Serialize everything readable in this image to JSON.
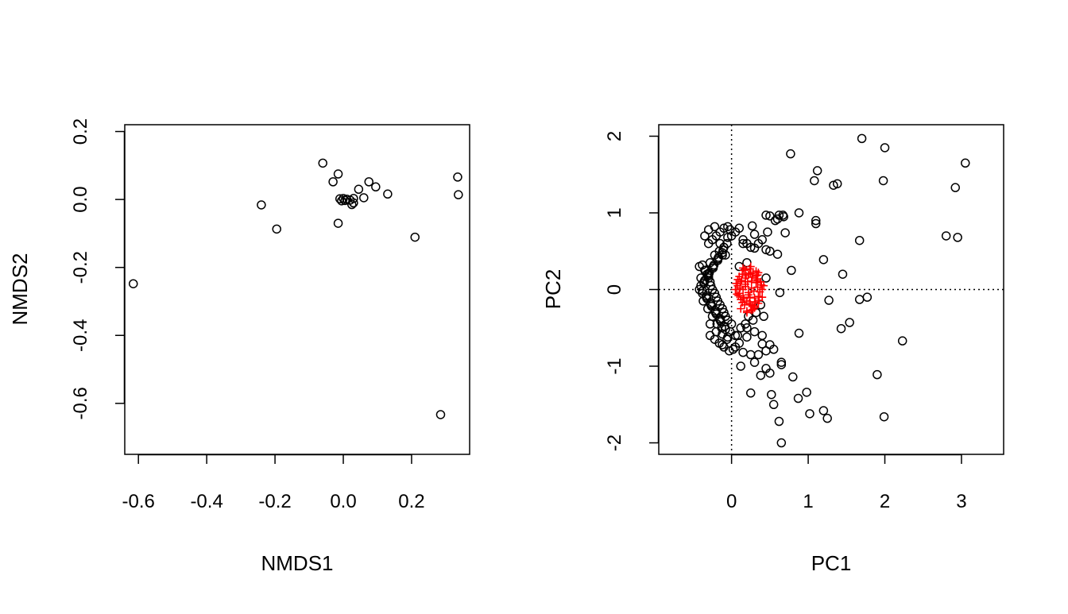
{
  "chart_data": [
    {
      "type": "scatter",
      "title": "",
      "xlabel": "NMDS1",
      "ylabel": "NMDS2",
      "xlim": [
        -0.64,
        0.37
      ],
      "ylim": [
        -0.75,
        0.22
      ],
      "xticks": [
        -0.6,
        -0.4,
        -0.2,
        0.0,
        0.2
      ],
      "xtick_labels": [
        "-0.6",
        "-0.4",
        "-0.2",
        "0.0",
        "0.2"
      ],
      "yticks": [
        0.2,
        0.0,
        -0.2,
        -0.4,
        -0.6
      ],
      "ytick_labels": [
        "0.2",
        "0.0",
        "-0.2",
        "-0.4",
        "-0.6"
      ],
      "grid": false,
      "series": [
        {
          "marker": "open-circle",
          "color": "#000000",
          "x": [
            -0.615,
            -0.24,
            -0.195,
            -0.06,
            -0.03,
            -0.015,
            -0.015,
            -0.01,
            -0.005,
            0.0,
            0.005,
            0.01,
            0.02,
            0.025,
            0.03,
            0.03,
            0.045,
            0.06,
            0.075,
            0.095,
            0.13,
            0.21,
            0.285,
            0.335,
            0.337
          ],
          "y": [
            -0.248,
            -0.016,
            -0.087,
            0.107,
            0.052,
            0.075,
            -0.07,
            0.002,
            -0.004,
            0.003,
            -0.003,
            0.001,
            -0.002,
            -0.015,
            -0.01,
            0.003,
            0.03,
            0.005,
            0.052,
            0.037,
            0.016,
            -0.111,
            -0.633,
            0.066,
            0.014
          ]
        }
      ]
    },
    {
      "type": "scatter",
      "title": "",
      "xlabel": "PC1",
      "ylabel": "PC2",
      "xlim": [
        -0.95,
        3.55
      ],
      "ylim": [
        -2.15,
        2.15
      ],
      "xticks": [
        0,
        1,
        2,
        3
      ],
      "xtick_labels": [
        "0",
        "1",
        "2",
        "3"
      ],
      "yticks": [
        2,
        1,
        0,
        -1,
        -2
      ],
      "ytick_labels": [
        "2",
        "1",
        "0",
        "-1",
        "-2"
      ],
      "reference_lines": {
        "x": 0,
        "y": 0,
        "style": "dotted"
      },
      "grid": false,
      "series": [
        {
          "marker": "open-circle",
          "color": "#000000",
          "x": [
            1.7,
            2.0,
            3.05,
            0.77,
            1.12,
            1.08,
            1.33,
            1.38,
            1.98,
            2.92,
            2.8,
            2.95,
            1.67,
            1.2,
            1.45,
            0.78,
            1.27,
            1.67,
            1.77,
            1.43,
            1.54,
            0.88,
            2.23,
            1.9,
            1.99,
            1.2,
            1.25,
            0.98,
            0.87,
            1.02,
            0.8,
            0.45,
            0.5,
            0.38,
            0.52,
            0.55,
            0.62,
            0.65,
            0.65,
            0.3,
            0.35,
            0.4,
            0.2,
            0.25,
            0.15,
            0.12,
            0.65,
            0.55,
            0.5,
            0.45,
            0.4,
            0.3,
            0.25,
            0.2,
            0.1,
            0.05,
            0.0,
            0.68,
            0.62,
            0.57,
            0.5,
            0.45,
            0.47,
            0.6,
            0.67,
            0.88,
            1.1,
            1.1,
            0.63,
            0.7,
            0.6,
            0.5,
            0.45,
            0.3,
            0.2,
            0.1,
            0.15,
            0.27,
            0.4,
            0.45
          ],
          "y": [
            1.97,
            1.85,
            1.65,
            1.77,
            1.55,
            1.42,
            1.36,
            1.38,
            1.42,
            1.33,
            0.7,
            0.68,
            0.64,
            0.39,
            0.2,
            0.25,
            -0.14,
            -0.13,
            -0.1,
            -0.51,
            -0.43,
            -0.57,
            -0.67,
            -1.11,
            -1.66,
            -1.58,
            -1.68,
            -1.34,
            -1.42,
            -1.62,
            -1.14,
            -1.03,
            -1.09,
            -1.12,
            -1.37,
            -1.5,
            -1.72,
            -2.0,
            -0.95,
            -0.95,
            -0.85,
            -0.71,
            -0.62,
            -1.35,
            -0.82,
            -1.0,
            -0.98,
            -0.78,
            -0.72,
            -0.8,
            -0.6,
            -0.55,
            -0.85,
            -0.5,
            -0.7,
            -0.6,
            -0.45,
            0.95,
            0.97,
            0.9,
            0.96,
            0.97,
            0.75,
            0.92,
            0.97,
            1.0,
            0.9,
            0.86,
            -0.04,
            0.74,
            0.46,
            0.5,
            0.52,
            0.54,
            0.35,
            0.3,
            0.6,
            0.83,
            0.65,
            0.15
          ]
        },
        {
          "marker": "open-circle",
          "color": "#000000",
          "description_none": "",
          "x": [
            -0.42,
            -0.38,
            -0.35,
            -0.32,
            -0.3,
            -0.28,
            -0.27,
            -0.25,
            -0.22,
            -0.2,
            -0.18,
            -0.15,
            -0.12,
            -0.1,
            -0.08,
            -0.05,
            -0.42,
            -0.4,
            -0.38,
            -0.36,
            -0.33,
            -0.3,
            -0.27,
            -0.24,
            -0.21,
            -0.18,
            -0.15,
            -0.12,
            -0.4,
            -0.37,
            -0.34,
            -0.31,
            -0.28,
            -0.25,
            -0.22,
            -0.19,
            -0.16,
            -0.13,
            -0.1,
            -0.38,
            -0.35,
            -0.32,
            -0.29,
            -0.26,
            -0.23,
            -0.2,
            -0.17,
            -0.14,
            -0.11,
            -0.08,
            -0.36,
            -0.33,
            -0.3,
            -0.27,
            -0.24,
            -0.21,
            -0.18,
            -0.15,
            -0.12,
            -0.09,
            -0.06,
            -0.3,
            -0.25,
            -0.2,
            -0.15,
            -0.1,
            -0.05,
            -0.02,
            -0.28,
            -0.22,
            -0.16,
            -0.1,
            -0.05,
            -0.02,
            -0.35,
            -0.3,
            -0.22,
            -0.15,
            -0.1,
            -0.05,
            0.0,
            -0.28,
            -0.2,
            -0.12,
            -0.06,
            0.02,
            -0.08,
            -0.12,
            -0.03,
            0.05,
            0.08,
            0.12,
            0.18,
            0.22,
            0.28,
            0.32,
            0.38,
            0.42,
            0.1,
            0.05,
            0.15,
            0.2,
            0.25,
            0.3,
            0.35
          ],
          "y": [
            0.3,
            0.32,
            0.25,
            0.2,
            0.15,
            0.1,
            0.05,
            0.0,
            -0.05,
            -0.1,
            -0.15,
            -0.2,
            -0.25,
            -0.3,
            -0.35,
            -0.4,
            0.0,
            0.05,
            -0.05,
            0.1,
            -0.1,
            0.2,
            -0.2,
            0.3,
            -0.3,
            0.4,
            -0.4,
            0.45,
            0.15,
            -0.15,
            0.25,
            -0.25,
            0.35,
            -0.35,
            0.45,
            -0.45,
            0.5,
            -0.5,
            0.55,
            -0.02,
            0.12,
            -0.12,
            0.22,
            -0.22,
            0.32,
            -0.32,
            0.42,
            -0.42,
            0.52,
            -0.52,
            0.08,
            -0.08,
            0.18,
            -0.18,
            0.28,
            -0.28,
            0.38,
            -0.38,
            0.48,
            -0.48,
            0.6,
            0.6,
            0.65,
            0.7,
            0.75,
            0.8,
            0.82,
            0.78,
            -0.6,
            -0.65,
            -0.7,
            -0.75,
            -0.62,
            -0.55,
            0.7,
            0.78,
            0.82,
            0.6,
            0.55,
            0.68,
            0.7,
            -0.45,
            -0.55,
            -0.58,
            -0.65,
            -0.78,
            0.45,
            -0.72,
            -0.8,
            -0.75,
            -0.6,
            -0.5,
            -0.45,
            -0.35,
            -0.4,
            -0.3,
            -0.2,
            -0.35,
            0.8,
            0.75,
            0.65,
            0.6,
            0.55,
            0.72,
            0.6
          ]
        },
        {
          "marker": "plus",
          "color": "#ff0000",
          "x": [
            0.05,
            0.08,
            0.1,
            0.12,
            0.15,
            0.18,
            0.2,
            0.22,
            0.25,
            0.28,
            0.3,
            0.32,
            0.35,
            0.38,
            0.4,
            0.42,
            0.06,
            0.09,
            0.13,
            0.16,
            0.19,
            0.23,
            0.26,
            0.29,
            0.33,
            0.36,
            0.39,
            0.07,
            0.11,
            0.14,
            0.17,
            0.21,
            0.24,
            0.27,
            0.31,
            0.34,
            0.37,
            0.08,
            0.12,
            0.15,
            0.18,
            0.22,
            0.25,
            0.28,
            0.32,
            0.35,
            0.1,
            0.14,
            0.18,
            0.22,
            0.26,
            0.3,
            0.34,
            0.12,
            0.16,
            0.2,
            0.24,
            0.28,
            0.32,
            0.15,
            0.2,
            0.25,
            0.3,
            0.35,
            0.4,
            0.18,
            0.26,
            0.34
          ],
          "y": [
            0.0,
            0.05,
            -0.05,
            0.1,
            -0.1,
            0.15,
            -0.15,
            0.2,
            -0.2,
            0.22,
            -0.22,
            0.18,
            -0.18,
            0.1,
            -0.1,
            0.05,
            0.08,
            -0.08,
            0.12,
            -0.12,
            0.18,
            -0.18,
            0.02,
            -0.02,
            0.14,
            -0.14,
            0.06,
            -0.06,
            0.02,
            0.2,
            -0.2,
            0.1,
            -0.1,
            0.16,
            -0.16,
            0.03,
            -0.03,
            0.13,
            -0.13,
            0.0,
            0.07,
            -0.07,
            0.21,
            -0.21,
            0.09,
            -0.09,
            0.17,
            -0.17,
            0.04,
            -0.04,
            0.11,
            -0.11,
            0.19,
            -0.25,
            0.25,
            -0.28,
            0.27,
            -0.26,
            0.24,
            0.28,
            -0.3,
            0.3,
            -0.24,
            0.22,
            0.0,
            0.26,
            -0.27,
            0.12
          ]
        }
      ]
    }
  ]
}
